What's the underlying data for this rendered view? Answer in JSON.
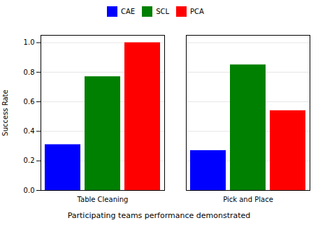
{
  "chart_data": {
    "type": "bar",
    "caption": "Participating teams performance demonstrated",
    "ylabel": "Success Rate",
    "categories": [
      "Table Cleaning",
      "Pick and Place"
    ],
    "series": [
      {
        "name": "CAE",
        "color": "#0000ff",
        "values": [
          0.31,
          0.27
        ]
      },
      {
        "name": "SCL",
        "color": "#008000",
        "values": [
          0.77,
          0.85
        ]
      },
      {
        "name": "PCA",
        "color": "#ff0000",
        "values": [
          1.0,
          0.54
        ]
      }
    ],
    "ylim": [
      0.0,
      1.05
    ],
    "yticks": [
      {
        "value": 0.0,
        "label": "0.0"
      },
      {
        "value": 0.2,
        "label": "0.2"
      },
      {
        "value": 0.4,
        "label": "0.4"
      },
      {
        "value": 0.6,
        "label": "0.6"
      },
      {
        "value": 0.8,
        "label": "0.8"
      },
      {
        "value": 1.0,
        "label": "1.0"
      }
    ],
    "grid": true,
    "legend": "top"
  }
}
